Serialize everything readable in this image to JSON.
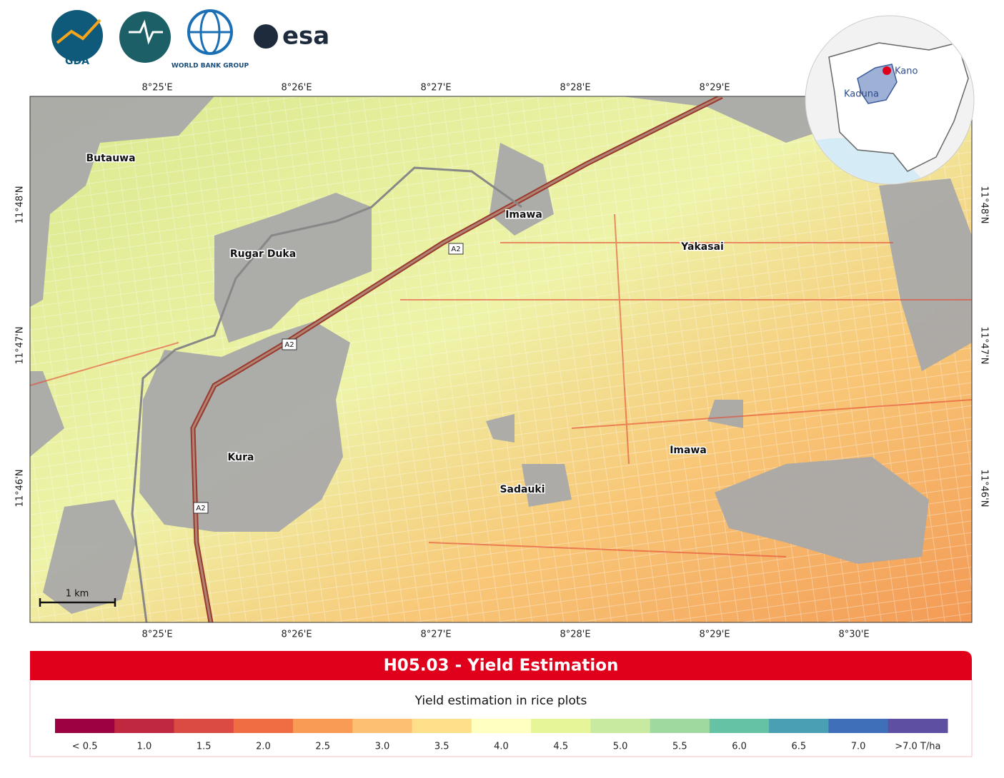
{
  "logos": {
    "gda": "GDA",
    "world_bank": "WORLD BANK GROUP",
    "esa": "esa"
  },
  "map": {
    "lon_ticks_top": [
      "8°25'E",
      "8°26'E",
      "8°27'E",
      "8°28'E",
      "8°29'E"
    ],
    "lon_ticks_bottom": [
      "8°25'E",
      "8°26'E",
      "8°27'E",
      "8°28'E",
      "8°29'E",
      "8°30'E"
    ],
    "lat_ticks": [
      "11°48'N",
      "11°47'N",
      "11°46'N"
    ],
    "places": [
      "Butauwa",
      "Imawa",
      "Rugar Duka",
      "Yakasai",
      "Kura",
      "Imawa",
      "Sadauki"
    ],
    "road_labels": [
      "A2",
      "A2",
      "A2"
    ],
    "scale_bar": "1   km"
  },
  "inset": {
    "labels": [
      "Kano",
      "Kaduna"
    ]
  },
  "legend": {
    "title": "H05.03 - Yield Estimation",
    "subtitle": "Yield estimation in rice plots",
    "classes": [
      {
        "label": "< 0.5",
        "color": "#9e0142"
      },
      {
        "label": "1.0",
        "color": "#c0283f"
      },
      {
        "label": "1.5",
        "color": "#dc4a44"
      },
      {
        "label": "2.0",
        "color": "#f06d43"
      },
      {
        "label": "2.5",
        "color": "#f99a55"
      },
      {
        "label": "3.0",
        "color": "#fdbf71"
      },
      {
        "label": "3.5",
        "color": "#fee08b"
      },
      {
        "label": "4.0",
        "color": "#ffffbf"
      },
      {
        "label": "4.5",
        "color": "#e6f598"
      },
      {
        "label": "5.0",
        "color": "#c7e9a0"
      },
      {
        "label": "5.5",
        "color": "#9fd9a0"
      },
      {
        "label": "6.0",
        "color": "#66c2a5"
      },
      {
        "label": "6.5",
        "color": "#4a9fb5"
      },
      {
        "label": "7.0",
        "color": "#3f6fb8"
      },
      {
        "label": ">7.0 T/ha",
        "color": "#5e4fa2"
      }
    ]
  }
}
